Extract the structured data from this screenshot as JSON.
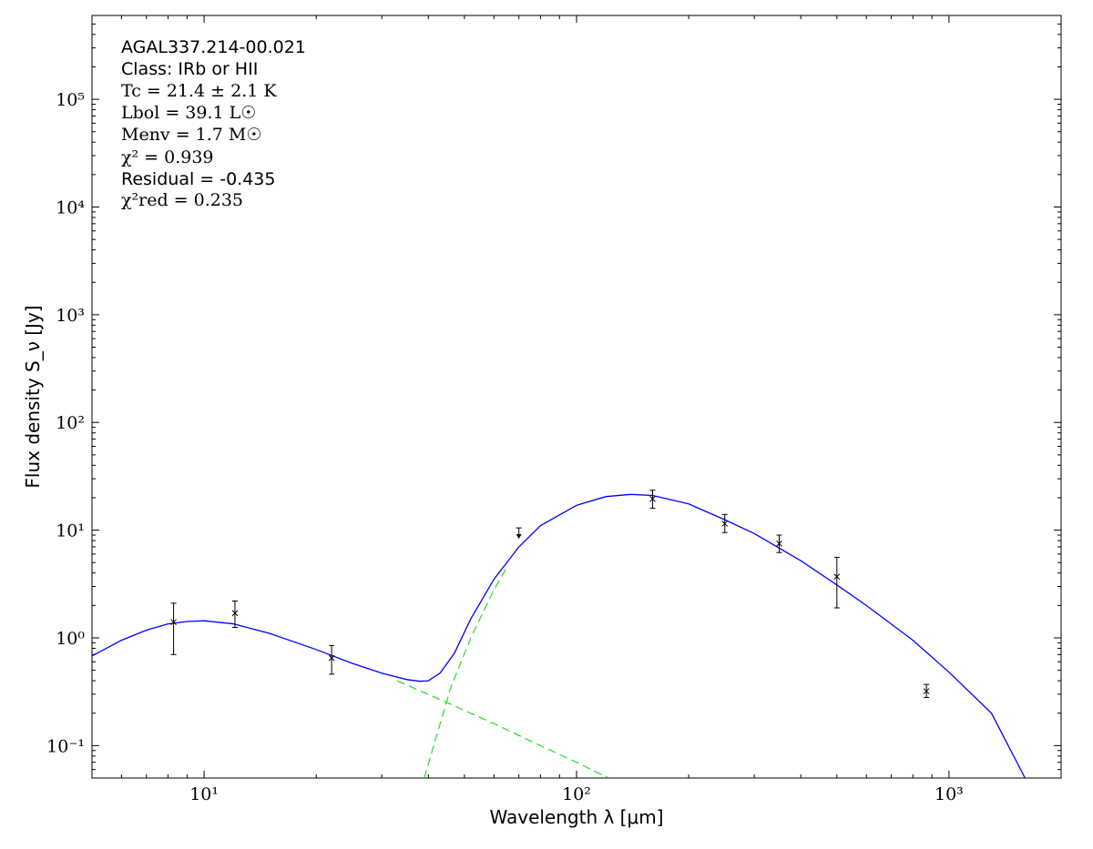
{
  "chart_data": {
    "type": "scatter",
    "xscale": "log",
    "yscale": "log",
    "xlim": [
      5,
      2000
    ],
    "ylim": [
      0.05,
      600000
    ],
    "xlabel": "Wavelength λ [μm]",
    "ylabel": "Flux density S_ν [Jy]",
    "x_ticks": [
      {
        "value": 10,
        "label": "10¹"
      },
      {
        "value": 100,
        "label": "10²"
      },
      {
        "value": 1000,
        "label": "10³"
      }
    ],
    "y_ticks": [
      {
        "value": 0.1,
        "label": "10⁻¹"
      },
      {
        "value": 1,
        "label": "10⁰"
      },
      {
        "value": 10,
        "label": "10¹"
      },
      {
        "value": 100,
        "label": "10²"
      },
      {
        "value": 1000,
        "label": "10³"
      },
      {
        "value": 10000,
        "label": "10⁴"
      },
      {
        "value": 100000,
        "label": "10⁵"
      }
    ],
    "annotations": [
      "AGAL337.214-00.021",
      "Class: IRb or HII",
      "Tc = 21.4 ± 2.1 K",
      "Lbol = 39.1 L☉",
      "Menv = 1.7 M☉",
      "χ² = 0.939",
      "Residual = -0.435",
      "χ²red = 0.235"
    ],
    "points": [
      {
        "x": 8.28,
        "y": 1.4,
        "err_low": 0.7,
        "err_high": 2.1
      },
      {
        "x": 12.1,
        "y": 1.7,
        "err_low": 1.25,
        "err_high": 2.2
      },
      {
        "x": 22.0,
        "y": 0.65,
        "err_low": 0.46,
        "err_high": 0.85
      },
      {
        "x": 160,
        "y": 19.5,
        "err_low": 16,
        "err_high": 23.5
      },
      {
        "x": 250,
        "y": 11.5,
        "err_low": 9.5,
        "err_high": 14
      },
      {
        "x": 350,
        "y": 7.5,
        "err_low": 6.2,
        "err_high": 9
      },
      {
        "x": 500,
        "y": 3.7,
        "err_low": 1.9,
        "err_high": 5.6
      },
      {
        "x": 870,
        "y": 0.32,
        "err_low": 0.28,
        "err_high": 0.37
      }
    ],
    "upper_limits": [
      {
        "x": 70,
        "y": 10.5
      }
    ],
    "series": [
      {
        "color": "#0000ff",
        "style": "solid",
        "x": [
          5,
          6,
          7,
          8,
          9,
          10,
          12,
          15,
          20,
          25,
          30,
          35,
          38,
          40,
          43,
          47,
          52,
          60,
          70,
          80,
          100,
          120,
          140,
          160,
          200,
          250,
          300,
          400,
          500,
          600,
          800,
          1000,
          1300,
          1600
        ],
        "y": [
          0.68,
          0.95,
          1.18,
          1.35,
          1.42,
          1.44,
          1.35,
          1.1,
          0.78,
          0.58,
          0.47,
          0.41,
          0.395,
          0.4,
          0.47,
          0.72,
          1.5,
          3.5,
          7.0,
          11,
          17,
          20.5,
          21.5,
          21,
          17.5,
          12.5,
          9.3,
          5.2,
          3.1,
          2.0,
          0.95,
          0.48,
          0.2,
          0.05
        ]
      },
      {
        "color": "#33dd33",
        "style": "dashed",
        "x": [
          33,
          45,
          60,
          80,
          100,
          122
        ],
        "y": [
          0.4,
          0.25,
          0.16,
          0.1,
          0.07,
          0.05
        ]
      },
      {
        "color": "#33dd33",
        "style": "dashed",
        "x": [
          39,
          42,
          46,
          52,
          60,
          65
        ],
        "y": [
          0.05,
          0.12,
          0.35,
          1.0,
          2.8,
          4.5
        ]
      }
    ]
  }
}
